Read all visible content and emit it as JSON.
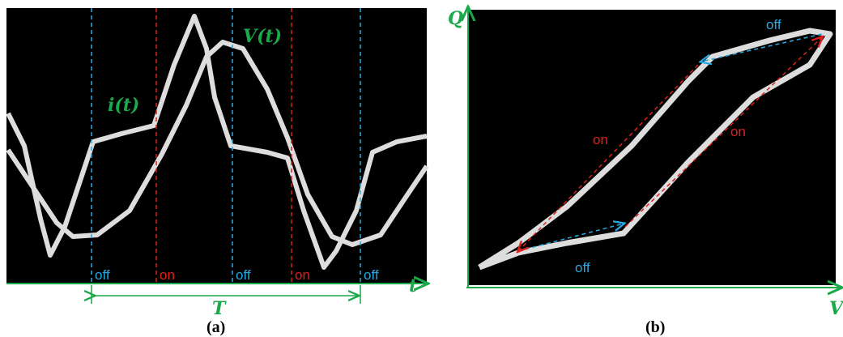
{
  "panel_a": {
    "caption": "(a)",
    "current_label": "i(t)",
    "voltage_label": "V(t)",
    "time_label": "t",
    "period_label": "T",
    "phase_labels": [
      "off",
      "on",
      "off",
      "on",
      "off"
    ]
  },
  "panel_b": {
    "caption": "(b)",
    "y_axis_label": "Q",
    "x_axis_label": "V",
    "phase_labels": [
      "off",
      "on",
      "on",
      "off"
    ]
  }
}
